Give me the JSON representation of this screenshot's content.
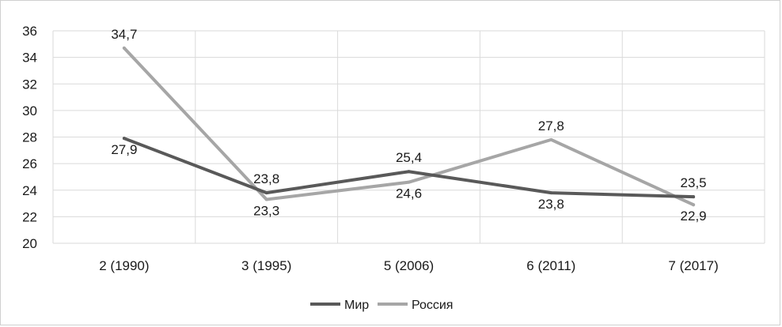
{
  "chart_data": {
    "type": "line",
    "categories": [
      "2 (1990)",
      "3 (1995)",
      "5 (2006)",
      "6 (2011)",
      "7 (2017)"
    ],
    "ylim": [
      20,
      36
    ],
    "yticks": [
      "20",
      "22",
      "24",
      "26",
      "28",
      "30",
      "32",
      "34",
      "36"
    ],
    "grid": true,
    "legend_position": "bottom",
    "series": [
      {
        "name": "Мир",
        "color": "#595959",
        "values": [
          27.9,
          23.8,
          25.4,
          23.8,
          23.5
        ],
        "labels": [
          "27,9",
          "23,8",
          "25,4",
          "23,8",
          "23,5"
        ]
      },
      {
        "name": "Россия",
        "color": "#a6a6a6",
        "values": [
          34.7,
          23.3,
          24.6,
          27.8,
          22.9
        ],
        "labels": [
          "34,7",
          "23,3",
          "24,6",
          "27,8",
          "22,9"
        ]
      }
    ]
  }
}
